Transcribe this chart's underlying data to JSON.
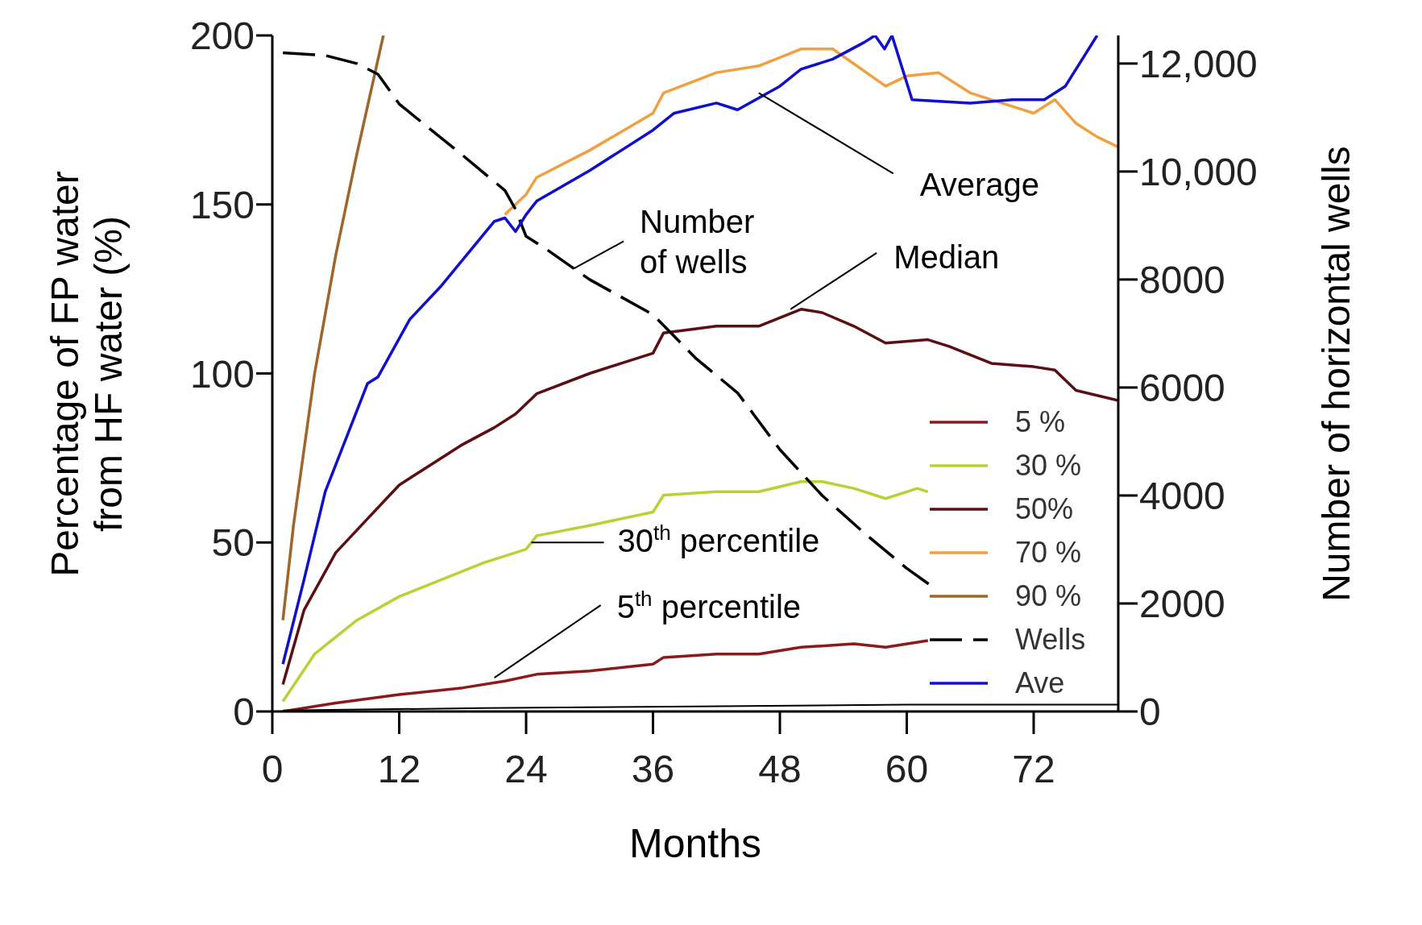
{
  "chart_data": {
    "type": "line",
    "xlabel": "Months",
    "ylabel": "Percentage of FP water\nfrom HF water (%)",
    "y2label": "Number of horizontal wells",
    "xlim": [
      0,
      80
    ],
    "xticks": [
      0,
      12,
      24,
      36,
      48,
      60,
      72
    ],
    "ylim": [
      0,
      200
    ],
    "yticks": [
      0,
      50,
      100,
      150,
      200
    ],
    "y2lim": [
      0,
      12520
    ],
    "y2ticks": [
      {
        "value": 0,
        "label": "0"
      },
      {
        "value": 2000,
        "label": "2000"
      },
      {
        "value": 4000,
        "label": "4000"
      },
      {
        "value": 6000,
        "label": "6000"
      },
      {
        "value": 8000,
        "label": "8000"
      },
      {
        "value": 10000,
        "label": "10,000"
      },
      {
        "value": 12000,
        "label": "12,000"
      }
    ],
    "grid": false,
    "legend": "bottom right",
    "marker": "none",
    "series": [
      {
        "name": "5 %",
        "color": "#8b1a1a",
        "x": [
          1,
          6,
          12,
          18,
          22,
          25,
          30,
          36,
          37,
          42,
          46,
          50,
          55,
          58,
          62
        ],
        "values": [
          0,
          2.5,
          5,
          7,
          9,
          11,
          12,
          14,
          16,
          17,
          17,
          19,
          20,
          19,
          21
        ]
      },
      {
        "name": "30 %",
        "color": "#b5d334",
        "x": [
          1,
          4,
          8,
          12,
          16,
          20,
          23,
          24,
          25,
          30,
          36,
          37,
          42,
          46,
          50,
          52,
          55,
          58,
          60,
          61,
          62
        ],
        "values": [
          3,
          17,
          27,
          34,
          39,
          44,
          47,
          48,
          52,
          55,
          59,
          64,
          65,
          65,
          68,
          68,
          66,
          63,
          65,
          66,
          65
        ]
      },
      {
        "name": "50%",
        "color": "#5c0f12",
        "x": [
          1,
          3,
          6,
          9,
          12,
          15,
          18,
          21,
          23,
          25,
          30,
          33,
          36,
          37,
          42,
          46,
          50,
          52,
          55,
          58,
          62,
          64,
          68,
          72,
          74,
          76,
          80
        ],
        "values": [
          8,
          30,
          47,
          57,
          67,
          73,
          79,
          84,
          88,
          94,
          100,
          103,
          106,
          112,
          114,
          114,
          119,
          118,
          114,
          109,
          110,
          108,
          103,
          102,
          101,
          95,
          92
        ]
      },
      {
        "name": "70 %",
        "color": "#f0a040",
        "x": [
          22,
          24,
          25,
          30,
          36,
          37,
          42,
          46,
          50,
          53,
          58,
          60,
          63,
          66,
          70,
          72,
          74,
          76,
          78,
          80
        ],
        "values": [
          147,
          153,
          158,
          166,
          177,
          183,
          189,
          191,
          196,
          196,
          185,
          188,
          189,
          183,
          179,
          177,
          181,
          174,
          170,
          167
        ]
      },
      {
        "name": "90 %",
        "color": "#a0652a",
        "x": [
          1,
          2,
          4,
          6,
          8,
          10.5
        ],
        "values": [
          27,
          55,
          100,
          135,
          165,
          200
        ]
      },
      {
        "name": "Wells",
        "color": "#000000",
        "axis": "y2",
        "line_style": "dashed",
        "x": [
          1,
          5,
          8,
          10,
          12,
          18,
          22,
          23,
          24,
          26,
          30,
          36,
          40,
          44,
          48,
          52,
          56,
          60,
          62.5
        ],
        "values": [
          12200,
          12150,
          12000,
          11800,
          11250,
          10300,
          9650,
          9300,
          8800,
          8550,
          8000,
          7350,
          6550,
          5900,
          4850,
          4000,
          3300,
          2650,
          2300
        ]
      },
      {
        "name": "Ave",
        "color": "#1010cc",
        "x": [
          1,
          3,
          5,
          9,
          10,
          13,
          16,
          21,
          22,
          23,
          24,
          25,
          30,
          36,
          38,
          42,
          44,
          48,
          50,
          53,
          56,
          57,
          57.9,
          58.6,
          60.5,
          66,
          70,
          73,
          75,
          78
        ],
        "values": [
          14,
          39,
          65,
          97,
          99,
          116,
          126,
          145,
          146,
          142,
          147,
          151,
          160,
          172,
          177,
          180,
          178,
          185,
          190,
          193,
          198,
          200,
          196,
          200,
          181,
          180,
          181,
          181,
          185,
          200
        ]
      },
      {
        "color": "#000000",
        "x": [
          1,
          20,
          40,
          60,
          80
        ],
        "values": [
          0.3,
          1,
          1.5,
          2,
          2
        ]
      }
    ],
    "annotations": [
      {
        "text": "Average",
        "x": 46,
        "y": 183
      },
      {
        "text": "Number\nof wells",
        "x": 28.5,
        "y": 131
      },
      {
        "text": "Median",
        "x": 49,
        "y": 119
      },
      {
        "text": "30$^{th}$ percentile",
        "x": 24.5,
        "y": 50
      },
      {
        "text": "5$^{th}$ percentile",
        "x": 21,
        "y": 10
      }
    ]
  }
}
